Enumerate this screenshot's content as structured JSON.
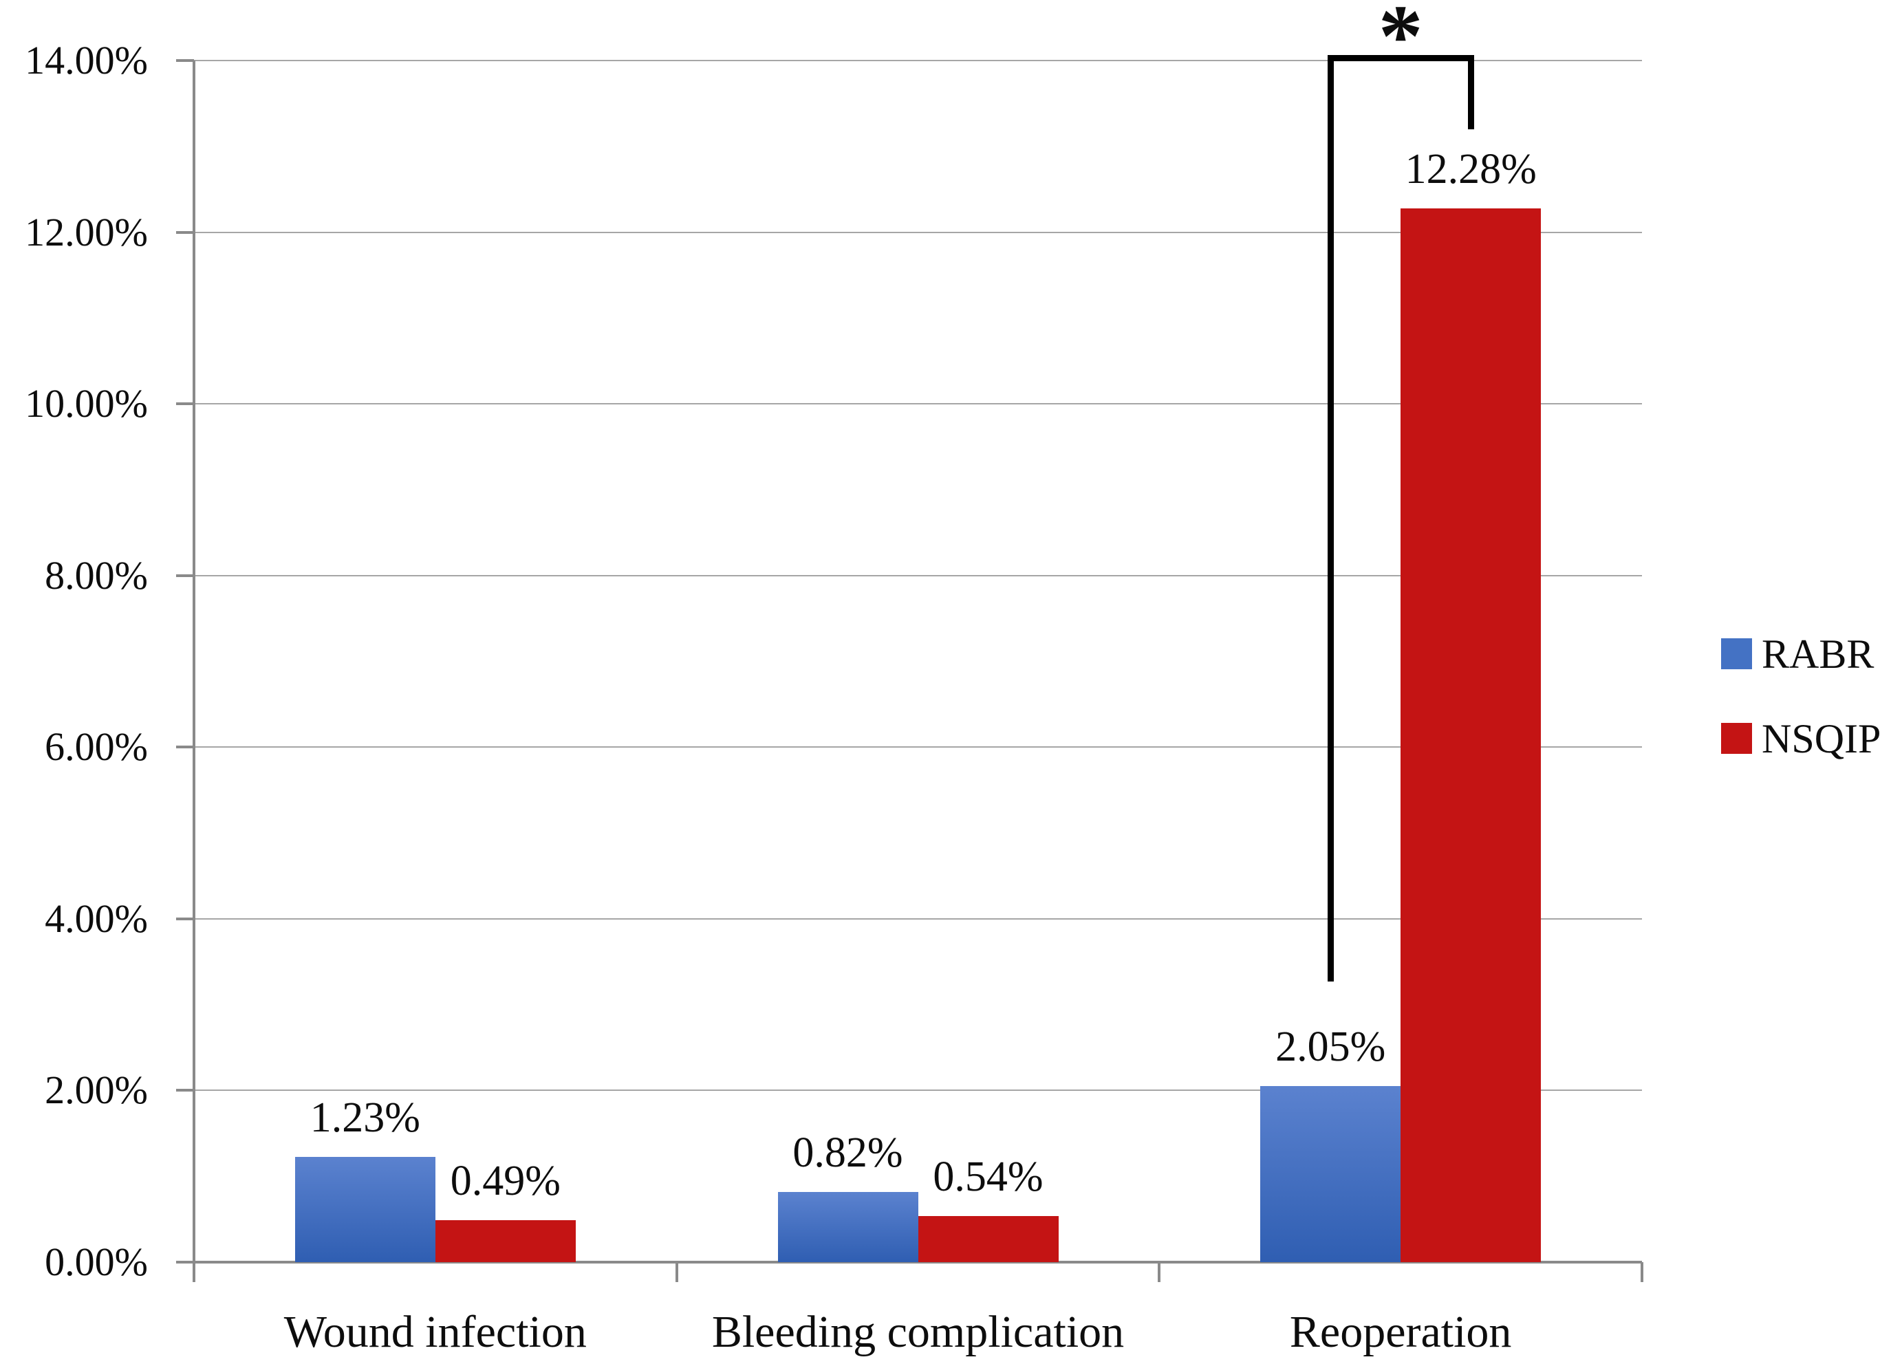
{
  "chart_data": {
    "type": "bar",
    "title": "",
    "xlabel": "",
    "ylabel": "",
    "categories": [
      "Wound infection",
      "Bleeding complication",
      "Reoperation"
    ],
    "series": [
      {
        "name": "RABR",
        "color": "#4472C4",
        "gradient_top": "#5B82CF",
        "gradient_bottom": "#2F5EB2",
        "values": [
          1.23,
          0.82,
          2.05
        ],
        "data_labels": [
          "1.23%",
          "0.82%",
          "2.05%"
        ]
      },
      {
        "name": "NSQIP",
        "color": "#C41414",
        "values": [
          0.49,
          0.54,
          12.28
        ],
        "data_labels": [
          "0.49%",
          "0.54%",
          "12.28%"
        ]
      }
    ],
    "ylim": [
      0,
      14
    ],
    "yticks": [
      {
        "value": 0,
        "label": "0.00%"
      },
      {
        "value": 2,
        "label": "2.00%"
      },
      {
        "value": 4,
        "label": "4.00%"
      },
      {
        "value": 6,
        "label": "6.00%"
      },
      {
        "value": 8,
        "label": "8.00%"
      },
      {
        "value": 10,
        "label": "10.00%"
      },
      {
        "value": 12,
        "label": "12.00%"
      },
      {
        "value": 14,
        "label": "14.00%"
      }
    ],
    "grid": true,
    "legend_position": "right",
    "significance": {
      "symbol": "*",
      "category": "Reoperation",
      "from_series": "RABR",
      "to_series": "NSQIP"
    }
  },
  "colors": {
    "background": "#FFFFFF",
    "gridline": "#A6A6A6",
    "axis": "#8A8A8A",
    "text": "#0D0D0D",
    "bracket": "#000000"
  }
}
